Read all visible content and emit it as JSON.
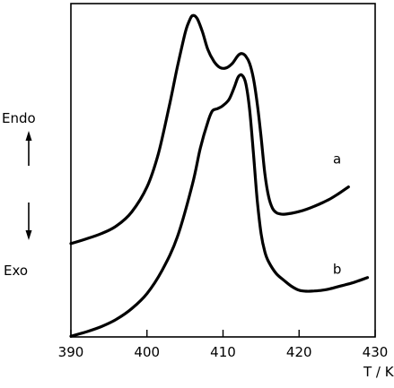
{
  "chart_data": {
    "type": "line",
    "title": "",
    "xlabel": "T / K",
    "ylabel_top": "Endo",
    "ylabel_bottom": "Exo",
    "xlim": [
      390,
      430
    ],
    "x_ticks": [
      390,
      400,
      410,
      420,
      430
    ],
    "x_tick_labels": [
      "390",
      "400",
      "410",
      "420",
      "430"
    ],
    "y_ticks_shown": false,
    "grid": false,
    "ylim": [
      0,
      100
    ],
    "series": [
      {
        "name": "a",
        "x": [
          390,
          392,
          394,
          396,
          398,
          400,
          401.5,
          403,
          404,
          405,
          405.5,
          406,
          406.6,
          407.3,
          408,
          408.8,
          409.6,
          410.4,
          411.2,
          412,
          412.5,
          413,
          413.5,
          414,
          414.5,
          415,
          415.5,
          416,
          416.5,
          417,
          417.5,
          418,
          419,
          420,
          421,
          422,
          423,
          424,
          425,
          426.5
        ],
        "y": [
          28.0,
          29.4,
          31.0,
          33.3,
          37.5,
          45.0,
          55.0,
          70.0,
          81.0,
          91.0,
          94.5,
          96.4,
          95.5,
          91.5,
          86.2,
          82.7,
          80.8,
          80.7,
          82.0,
          84.5,
          85.0,
          84.2,
          82.0,
          77.5,
          70.0,
          60.0,
          49.0,
          42.0,
          38.6,
          37.3,
          36.9,
          36.8,
          37.1,
          37.6,
          38.3,
          39.2,
          40.2,
          41.3,
          42.7,
          45.0
        ]
      },
      {
        "name": "b",
        "x": [
          390,
          392,
          394,
          396,
          398,
          400,
          402,
          404,
          406,
          407,
          408,
          408.6,
          409.3,
          410,
          410.8,
          411.5,
          412,
          412.5,
          413,
          413.5,
          414,
          414.5,
          415,
          415.5,
          416,
          417,
          418,
          419,
          420,
          421,
          422,
          423,
          424,
          425,
          426,
          427,
          428,
          429
        ],
        "y": [
          0.2,
          1.5,
          3.1,
          5.3,
          8.5,
          13.0,
          20.0,
          30.0,
          46.0,
          56.5,
          64.5,
          67.8,
          68.5,
          69.4,
          71.3,
          75.0,
          78.0,
          78.5,
          76.0,
          68.0,
          55.0,
          41.0,
          31.0,
          25.5,
          22.5,
          19.0,
          17.0,
          15.2,
          14.0,
          13.7,
          13.8,
          14.0,
          14.4,
          15.0,
          15.6,
          16.2,
          17.0,
          17.8
        ]
      }
    ],
    "series_labels": [
      {
        "text": "a",
        "x": 425,
        "y": 52
      },
      {
        "text": "b",
        "x": 425,
        "y": 19
      }
    ],
    "axis_color": "#000000",
    "line_color": "#000000"
  }
}
